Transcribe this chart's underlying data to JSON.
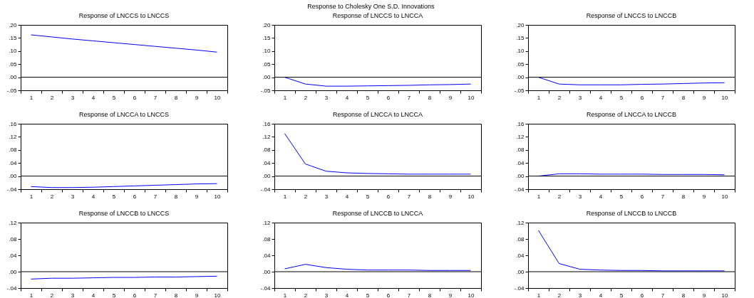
{
  "chart_data": [
    {
      "type": "line",
      "title": "Response of LNCCS to LNCCS",
      "annotations": [
        "Response to Cholesky One S.D. Innovations"
      ],
      "categories": [
        "1",
        "2",
        "3",
        "4",
        "5",
        "6",
        "7",
        "8",
        "9",
        "10"
      ],
      "series": [
        {
          "color": "#0000ff",
          "values": [
            0.162,
            0.154,
            0.146,
            0.139,
            0.132,
            0.125,
            0.118,
            0.111,
            0.104,
            0.096
          ]
        }
      ],
      "ylim": [
        -0.05,
        0.2
      ],
      "yticks": [
        {
          "value": -0.05,
          "label": "-.05"
        },
        {
          "value": 0,
          "label": ".00"
        },
        {
          "value": 0.05,
          "label": ".05"
        },
        {
          "value": 0.1,
          "label": ".10"
        },
        {
          "value": 0.15,
          "label": ".15"
        },
        {
          "value": 0.2,
          "label": ".20"
        }
      ],
      "grid": false,
      "ref_lines": [
        {
          "axis": "y",
          "value": 0,
          "color": "#000000"
        }
      ]
    },
    {
      "type": "line",
      "title": "Response of LNCCS to LNCCA",
      "categories": [
        "1",
        "2",
        "3",
        "4",
        "5",
        "6",
        "7",
        "8",
        "9",
        "10"
      ],
      "series": [
        {
          "color": "#0000ff",
          "values": [
            0,
            -0.026,
            -0.034,
            -0.034,
            -0.033,
            -0.032,
            -0.031,
            -0.029,
            -0.028,
            -0.026
          ]
        }
      ],
      "ylim": [
        -0.05,
        0.2
      ],
      "yticks": [
        {
          "value": -0.05,
          "label": "-.05"
        },
        {
          "value": 0,
          "label": ".00"
        },
        {
          "value": 0.05,
          "label": ".05"
        },
        {
          "value": 0.1,
          "label": ".10"
        },
        {
          "value": 0.15,
          "label": ".15"
        },
        {
          "value": 0.2,
          "label": ".20"
        }
      ],
      "grid": false,
      "ref_lines": [
        {
          "axis": "y",
          "value": 0,
          "color": "#000000"
        }
      ]
    },
    {
      "type": "line",
      "title": "Response of LNCCS to LNCCB",
      "categories": [
        "1",
        "2",
        "3",
        "4",
        "5",
        "6",
        "7",
        "8",
        "9",
        "10"
      ],
      "series": [
        {
          "color": "#0000ff",
          "values": [
            0,
            -0.026,
            -0.029,
            -0.029,
            -0.029,
            -0.027,
            -0.026,
            -0.024,
            -0.022,
            -0.021
          ]
        }
      ],
      "ylim": [
        -0.05,
        0.2
      ],
      "yticks": [
        {
          "value": -0.05,
          "label": "-.05"
        },
        {
          "value": 0,
          "label": ".00"
        },
        {
          "value": 0.05,
          "label": ".05"
        },
        {
          "value": 0.1,
          "label": ".10"
        },
        {
          "value": 0.15,
          "label": ".15"
        },
        {
          "value": 0.2,
          "label": ".20"
        }
      ],
      "grid": false,
      "ref_lines": [
        {
          "axis": "y",
          "value": 0,
          "color": "#000000"
        }
      ]
    },
    {
      "type": "line",
      "title": "Response of LNCCA to LNCCS",
      "categories": [
        "1",
        "2",
        "3",
        "4",
        "5",
        "6",
        "7",
        "8",
        "9",
        "10"
      ],
      "series": [
        {
          "color": "#0000ff",
          "values": [
            -0.032,
            -0.035,
            -0.035,
            -0.034,
            -0.032,
            -0.03,
            -0.028,
            -0.026,
            -0.024,
            -0.023
          ]
        }
      ],
      "ylim": [
        -0.04,
        0.16
      ],
      "yticks": [
        {
          "value": -0.04,
          "label": "-.04"
        },
        {
          "value": 0,
          "label": ".00"
        },
        {
          "value": 0.04,
          "label": ".04"
        },
        {
          "value": 0.08,
          "label": ".08"
        },
        {
          "value": 0.12,
          "label": ".12"
        },
        {
          "value": 0.16,
          "label": ".16"
        }
      ],
      "grid": false,
      "ref_lines": [
        {
          "axis": "y",
          "value": 0,
          "color": "#000000"
        }
      ]
    },
    {
      "type": "line",
      "title": "Response of LNCCA to LNCCA",
      "categories": [
        "1",
        "2",
        "3",
        "4",
        "5",
        "6",
        "7",
        "8",
        "9",
        "10"
      ],
      "series": [
        {
          "color": "#0000ff",
          "values": [
            0.13,
            0.037,
            0.015,
            0.01,
            0.008,
            0.007,
            0.006,
            0.006,
            0.006,
            0.006
          ]
        }
      ],
      "ylim": [
        -0.04,
        0.16
      ],
      "yticks": [
        {
          "value": -0.04,
          "label": "-.04"
        },
        {
          "value": 0,
          "label": ".00"
        },
        {
          "value": 0.04,
          "label": ".04"
        },
        {
          "value": 0.08,
          "label": ".08"
        },
        {
          "value": 0.12,
          "label": ".12"
        },
        {
          "value": 0.16,
          "label": ".16"
        }
      ],
      "grid": false,
      "ref_lines": [
        {
          "axis": "y",
          "value": 0,
          "color": "#000000"
        }
      ]
    },
    {
      "type": "line",
      "title": "Response of LNCCA to LNCCB",
      "categories": [
        "1",
        "2",
        "3",
        "4",
        "5",
        "6",
        "7",
        "8",
        "9",
        "10"
      ],
      "series": [
        {
          "color": "#0000ff",
          "values": [
            0,
            0.007,
            0.007,
            0.006,
            0.006,
            0.006,
            0.005,
            0.005,
            0.005,
            0.004
          ]
        }
      ],
      "ylim": [
        -0.04,
        0.16
      ],
      "yticks": [
        {
          "value": -0.04,
          "label": "-.04"
        },
        {
          "value": 0,
          "label": ".00"
        },
        {
          "value": 0.04,
          "label": ".04"
        },
        {
          "value": 0.08,
          "label": ".08"
        },
        {
          "value": 0.12,
          "label": ".12"
        },
        {
          "value": 0.16,
          "label": ".16"
        }
      ],
      "grid": false,
      "ref_lines": [
        {
          "axis": "y",
          "value": 0,
          "color": "#000000"
        }
      ]
    },
    {
      "type": "line",
      "title": "Response of LNCCB to LNCCS",
      "categories": [
        "1",
        "2",
        "3",
        "4",
        "5",
        "6",
        "7",
        "8",
        "9",
        "10"
      ],
      "series": [
        {
          "color": "#0000ff",
          "values": [
            -0.018,
            -0.016,
            -0.016,
            -0.015,
            -0.014,
            -0.014,
            -0.013,
            -0.013,
            -0.012,
            -0.011
          ]
        }
      ],
      "ylim": [
        -0.04,
        0.12
      ],
      "yticks": [
        {
          "value": -0.04,
          "label": "-.04"
        },
        {
          "value": 0,
          "label": ".00"
        },
        {
          "value": 0.04,
          "label": ".04"
        },
        {
          "value": 0.08,
          "label": ".08"
        },
        {
          "value": 0.12,
          "label": ".12"
        }
      ],
      "grid": false,
      "ref_lines": [
        {
          "axis": "y",
          "value": 0,
          "color": "#000000"
        }
      ]
    },
    {
      "type": "line",
      "title": "Response of LNCCB to LNCCA",
      "categories": [
        "1",
        "2",
        "3",
        "4",
        "5",
        "6",
        "7",
        "8",
        "9",
        "10"
      ],
      "series": [
        {
          "color": "#0000ff",
          "values": [
            0.007,
            0.018,
            0.01,
            0.006,
            0.004,
            0.004,
            0.004,
            0.003,
            0.003,
            0.003
          ]
        }
      ],
      "ylim": [
        -0.04,
        0.12
      ],
      "yticks": [
        {
          "value": -0.04,
          "label": "-.04"
        },
        {
          "value": 0,
          "label": ".00"
        },
        {
          "value": 0.04,
          "label": ".04"
        },
        {
          "value": 0.08,
          "label": ".08"
        },
        {
          "value": 0.12,
          "label": ".12"
        }
      ],
      "grid": false,
      "ref_lines": [
        {
          "axis": "y",
          "value": 0,
          "color": "#000000"
        }
      ]
    },
    {
      "type": "line",
      "title": "Response of LNCCB to LNCCB",
      "categories": [
        "1",
        "2",
        "3",
        "4",
        "5",
        "6",
        "7",
        "8",
        "9",
        "10"
      ],
      "series": [
        {
          "color": "#0000ff",
          "values": [
            0.101,
            0.02,
            0.006,
            0.004,
            0.003,
            0.003,
            0.002,
            0.002,
            0.002,
            0.002
          ]
        }
      ],
      "ylim": [
        -0.04,
        0.12
      ],
      "yticks": [
        {
          "value": -0.04,
          "label": "-.04"
        },
        {
          "value": 0,
          "label": ".00"
        },
        {
          "value": 0.04,
          "label": ".04"
        },
        {
          "value": 0.08,
          "label": ".08"
        },
        {
          "value": 0.12,
          "label": ".12"
        }
      ],
      "grid": false,
      "ref_lines": [
        {
          "axis": "y",
          "value": 0,
          "color": "#000000"
        }
      ]
    }
  ]
}
